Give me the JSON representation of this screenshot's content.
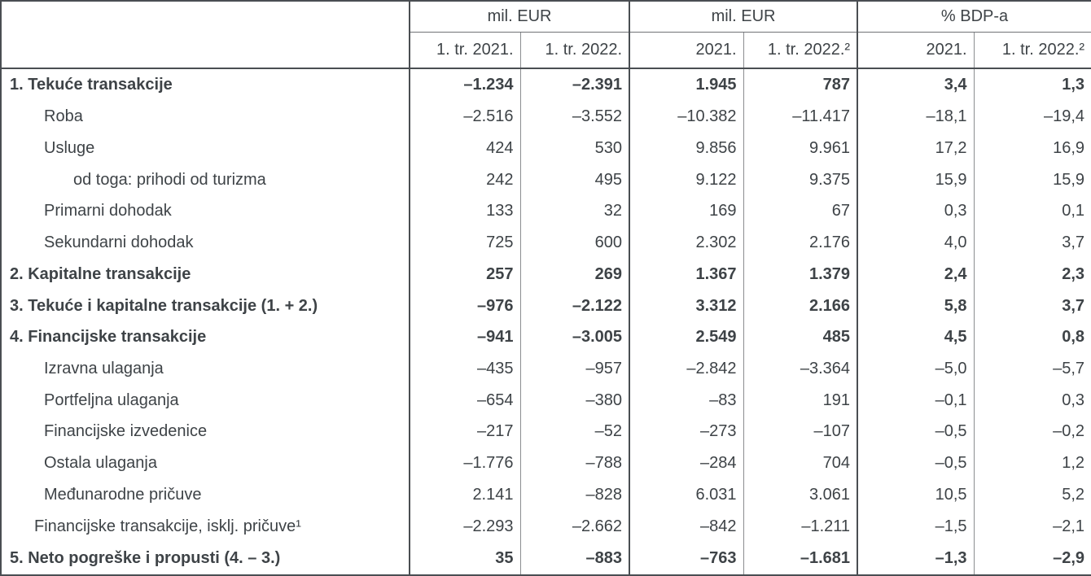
{
  "colors": {
    "text": "#3e4347",
    "border_dark": "#4a4e52",
    "border_light": "#8b8d90",
    "background": "#ffffff"
  },
  "table": {
    "column_groups": [
      {
        "label": "mil. EUR",
        "span": 2
      },
      {
        "label": "mil. EUR",
        "span": 2
      },
      {
        "label": "% BDP-a",
        "span": 2
      }
    ],
    "column_headers": [
      "1. tr. 2021.",
      "1. tr. 2022.",
      "2021.",
      "1. tr. 2022.²",
      "2021.",
      "1. tr. 2022.²"
    ],
    "rows": [
      {
        "label": "1. Tekuće transakcije",
        "indent": 0,
        "bold": true,
        "values": [
          "–1.234",
          "–2.391",
          "1.945",
          "787",
          "3,4",
          "1,3"
        ]
      },
      {
        "label": "Roba",
        "indent": 1,
        "bold": false,
        "values": [
          "–2.516",
          "–3.552",
          "–10.382",
          "–11.417",
          "–18,1",
          "–19,4"
        ]
      },
      {
        "label": "Usluge",
        "indent": 1,
        "bold": false,
        "values": [
          "424",
          "530",
          "9.856",
          "9.961",
          "17,2",
          "16,9"
        ]
      },
      {
        "label": "od toga: prihodi od turizma",
        "indent": 2,
        "bold": false,
        "values": [
          "242",
          "495",
          "9.122",
          "9.375",
          "15,9",
          "15,9"
        ]
      },
      {
        "label": "Primarni dohodak",
        "indent": 1,
        "bold": false,
        "values": [
          "133",
          "32",
          "169",
          "67",
          "0,3",
          "0,1"
        ]
      },
      {
        "label": "Sekundarni dohodak",
        "indent": 1,
        "bold": false,
        "values": [
          "725",
          "600",
          "2.302",
          "2.176",
          "4,0",
          "3,7"
        ]
      },
      {
        "label": "2. Kapitalne transakcije",
        "indent": 0,
        "bold": true,
        "values": [
          "257",
          "269",
          "1.367",
          "1.379",
          "2,4",
          "2,3"
        ]
      },
      {
        "label": "3. Tekuće i kapitalne transakcije (1. + 2.)",
        "indent": 0,
        "bold": true,
        "values": [
          "–976",
          "–2.122",
          "3.312",
          "2.166",
          "5,8",
          "3,7"
        ]
      },
      {
        "label": "4. Financijske transakcije",
        "indent": 0,
        "bold": true,
        "values": [
          "–941",
          "–3.005",
          "2.549",
          "485",
          "4,5",
          "0,8"
        ]
      },
      {
        "label": "Izravna ulaganja",
        "indent": 1,
        "bold": false,
        "values": [
          "–435",
          "–957",
          "–2.842",
          "–3.364",
          "–5,0",
          "–5,7"
        ]
      },
      {
        "label": "Portfeljna ulaganja",
        "indent": 1,
        "bold": false,
        "values": [
          "–654",
          "–380",
          "–83",
          "191",
          "–0,1",
          "0,3"
        ]
      },
      {
        "label": "Financijske izvedenice",
        "indent": 1,
        "bold": false,
        "values": [
          "–217",
          "–52",
          "–273",
          "–107",
          "–0,5",
          "–0,2"
        ]
      },
      {
        "label": "Ostala ulaganja",
        "indent": 1,
        "bold": false,
        "values": [
          "–1.776",
          "–788",
          "–284",
          "704",
          "–0,5",
          "1,2"
        ]
      },
      {
        "label": "Međunarodne pričuve",
        "indent": 1,
        "bold": false,
        "values": [
          "2.141",
          "–828",
          "6.031",
          "3.061",
          "10,5",
          "5,2"
        ]
      },
      {
        "label": "Financijske transakcije, isklj. pričuve¹",
        "indent": 3,
        "bold": false,
        "values": [
          "–2.293",
          "–2.662",
          "–842",
          "–1.211",
          "–1,5",
          "–2,1"
        ]
      },
      {
        "label": "5. Neto pogreške i propusti (4. – 3.)",
        "indent": 0,
        "bold": true,
        "values": [
          "35",
          "–883",
          "–763",
          "–1.681",
          "–1,3",
          "–2,9"
        ]
      }
    ]
  }
}
